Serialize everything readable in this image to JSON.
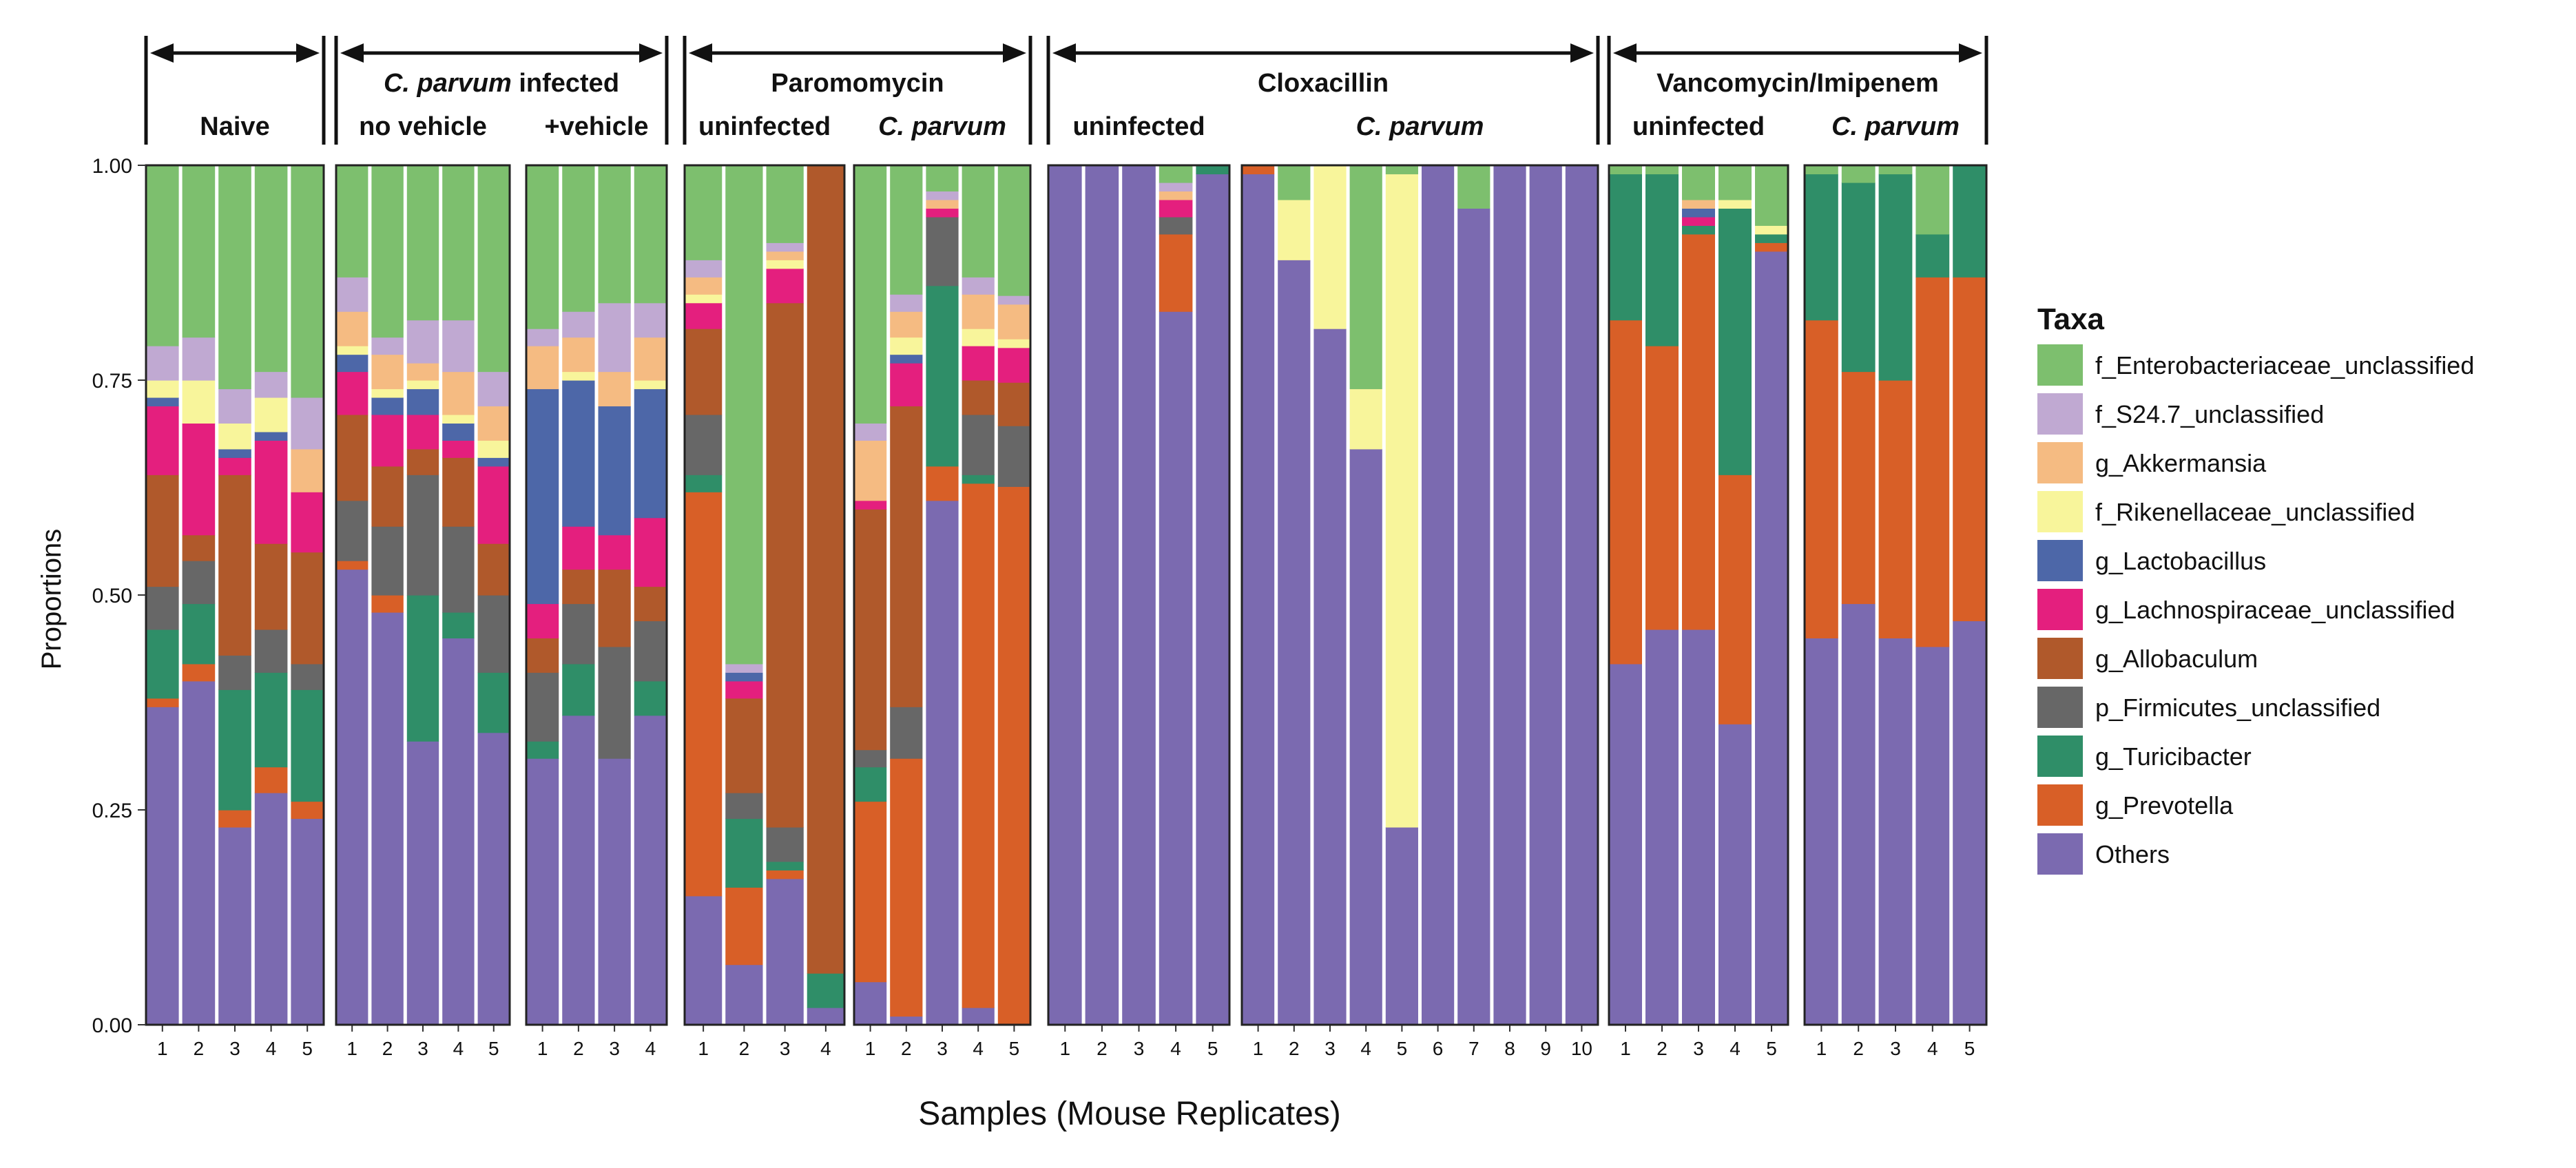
{
  "chart_data": {
    "type": "bar",
    "stacked": true,
    "ylabel": "Proportions",
    "xlabel": "Samples (Mouse Replicates)",
    "ylim": [
      0,
      1
    ],
    "yticks": [
      "0.00",
      "0.25",
      "0.50",
      "0.75",
      "1.00"
    ],
    "legend": {
      "title": "Taxa",
      "placement": "right",
      "entries": [
        {
          "name": "f_Enterobacteriaceae_unclassified",
          "color": "#7dbf6e"
        },
        {
          "name": "f_S24.7_unclassified",
          "color": "#c0a9d2"
        },
        {
          "name": "g_Akkermansia",
          "color": "#f5bb82"
        },
        {
          "name": "f_Rikenellaceae_unclassified",
          "color": "#f8f59b"
        },
        {
          "name": "g_Lactobacillus",
          "color": "#4d67a8"
        },
        {
          "name": "g_Lachnospiraceae_unclassified",
          "color": "#e41f7e"
        },
        {
          "name": "g_Allobaculum",
          "color": "#b0592b"
        },
        {
          "name": "p_Firmicutes_unclassified",
          "color": "#676767"
        },
        {
          "name": "g_Turicibacter",
          "color": "#2f8e68"
        },
        {
          "name": "g_Prevotella",
          "color": "#d85f27"
        },
        {
          "name": "Others",
          "color": "#7b6ab0"
        }
      ]
    },
    "group_headers": [
      {
        "title": "Naive",
        "title_italic": "",
        "panels": [
          0
        ]
      },
      {
        "title": " infected",
        "title_italic": "C. parvum",
        "panels": [
          1,
          2
        ]
      },
      {
        "title": "Paromomycin",
        "title_italic": "",
        "panels": [
          3,
          4
        ]
      },
      {
        "title": "Cloxacillin",
        "title_italic": "",
        "panels": [
          5,
          6
        ]
      },
      {
        "title": "Vancomycin/Imipenem",
        "title_italic": "",
        "panels": [
          7,
          8
        ]
      }
    ],
    "panels": [
      {
        "label": "",
        "italic": false,
        "samples": [
          [
            0.21,
            0.04,
            0,
            0.02,
            0.01,
            0.08,
            0.13,
            0.05,
            0.08,
            0.01,
            0.37
          ],
          [
            0.2,
            0.05,
            0,
            0.05,
            0,
            0.13,
            0.03,
            0.05,
            0.07,
            0.02,
            0.4
          ],
          [
            0.26,
            0.04,
            0,
            0.03,
            0.01,
            0.02,
            0.21,
            0.04,
            0.14,
            0.02,
            0.23
          ],
          [
            0.24,
            0.03,
            0,
            0.04,
            0.01,
            0.12,
            0.1,
            0.05,
            0.11,
            0.03,
            0.27
          ],
          [
            0.27,
            0.06,
            0.05,
            0,
            0,
            0.07,
            0.13,
            0.03,
            0.13,
            0.02,
            0.24
          ]
        ]
      },
      {
        "label": "no vehicle",
        "italic": false,
        "samples": [
          [
            0.13,
            0.04,
            0.04,
            0.01,
            0.02,
            0.05,
            0.1,
            0.07,
            0,
            0.01,
            0.53
          ],
          [
            0.2,
            0.02,
            0.04,
            0.01,
            0.02,
            0.06,
            0.07,
            0.08,
            0,
            0.02,
            0.48
          ],
          [
            0.18,
            0.05,
            0.02,
            0.01,
            0.03,
            0.04,
            0.03,
            0.14,
            0.17,
            0,
            0.33
          ],
          [
            0.18,
            0.06,
            0.05,
            0.01,
            0.02,
            0.02,
            0.08,
            0.1,
            0.03,
            0,
            0.45
          ],
          [
            0.24,
            0.04,
            0.04,
            0.02,
            0.01,
            0.09,
            0.06,
            0.09,
            0.07,
            0,
            0.34
          ]
        ]
      },
      {
        "label": "+vehicle",
        "italic": false,
        "samples": [
          [
            0.19,
            0.02,
            0.05,
            0,
            0.25,
            0.04,
            0.04,
            0.08,
            0.02,
            0,
            0.31
          ],
          [
            0.17,
            0.03,
            0.04,
            0.01,
            0.17,
            0.05,
            0.04,
            0.07,
            0.06,
            0,
            0.36
          ],
          [
            0.16,
            0.08,
            0.04,
            0,
            0.15,
            0.04,
            0.09,
            0.13,
            0,
            0,
            0.31
          ],
          [
            0.16,
            0.04,
            0.05,
            0.01,
            0.15,
            0.08,
            0.04,
            0.07,
            0.04,
            0,
            0.36
          ]
        ]
      },
      {
        "label": "uninfected",
        "italic": false,
        "samples": [
          [
            0.11,
            0.02,
            0.02,
            0.01,
            0,
            0.03,
            0.1,
            0.07,
            0.02,
            0.47,
            0.15
          ],
          [
            0.58,
            0.01,
            0,
            0,
            0.01,
            0.02,
            0.11,
            0.03,
            0.08,
            0.09,
            0.07
          ],
          [
            0.09,
            0.01,
            0.01,
            0.01,
            0,
            0.04,
            0.61,
            0.04,
            0.01,
            0.01,
            0.17
          ],
          [
            0,
            0,
            0,
            0,
            0,
            0,
            0.94,
            0,
            0.04,
            0,
            0.02
          ]
        ]
      },
      {
        "label": "C. parvum",
        "italic": true,
        "samples": [
          [
            0.3,
            0.02,
            0.07,
            0,
            0,
            0.01,
            0.28,
            0.02,
            0.04,
            0.21,
            0.05
          ],
          [
            0.15,
            0.02,
            0.03,
            0.02,
            0.01,
            0.05,
            0.35,
            0.06,
            0,
            0.3,
            0.01
          ],
          [
            0.03,
            0.01,
            0.01,
            0,
            0,
            0.01,
            0,
            0.08,
            0.21,
            0.04,
            0.61
          ],
          [
            0.13,
            0.02,
            0.04,
            0.02,
            0,
            0.04,
            0.04,
            0.07,
            0.01,
            0.61,
            0.02
          ],
          [
            0.15,
            0.01,
            0.04,
            0.01,
            0,
            0.04,
            0.05,
            0.07,
            0,
            0.62,
            0
          ]
        ]
      },
      {
        "label": "uninfected",
        "italic": false,
        "samples": [
          [
            0,
            0,
            0,
            0,
            0,
            0,
            0,
            0,
            0,
            0,
            1
          ],
          [
            0,
            0,
            0,
            0,
            0,
            0,
            0,
            0,
            0,
            0,
            1
          ],
          [
            0,
            0,
            0,
            0,
            0,
            0,
            0,
            0,
            0,
            0,
            1
          ],
          [
            0.02,
            0.01,
            0.01,
            0,
            0,
            0.02,
            0,
            0.02,
            0,
            0.09,
            0.83
          ],
          [
            0,
            0,
            0,
            0,
            0,
            0,
            0,
            0,
            0.01,
            0,
            0.99
          ]
        ]
      },
      {
        "label": "C. parvum",
        "italic": true,
        "samples": [
          [
            0,
            0,
            0,
            0,
            0,
            0,
            0,
            0,
            0,
            0.01,
            0.99
          ],
          [
            0.04,
            0,
            0,
            0.07,
            0,
            0,
            0,
            0,
            0,
            0,
            0.89
          ],
          [
            0,
            0,
            0,
            0.19,
            0,
            0,
            0,
            0,
            0,
            0,
            0.81
          ],
          [
            0.26,
            0,
            0,
            0.07,
            0,
            0,
            0,
            0,
            0,
            0,
            0.67
          ],
          [
            0.01,
            0,
            0,
            0.76,
            0,
            0,
            0,
            0,
            0,
            0,
            0.23
          ],
          [
            0,
            0,
            0,
            0,
            0,
            0,
            0,
            0,
            0,
            0,
            1
          ],
          [
            0.05,
            0,
            0,
            0,
            0,
            0,
            0,
            0,
            0,
            0,
            0.95
          ],
          [
            0,
            0,
            0,
            0,
            0,
            0,
            0,
            0,
            0,
            0,
            1
          ],
          [
            0,
            0,
            0,
            0,
            0,
            0,
            0,
            0,
            0,
            0,
            1
          ],
          [
            0,
            0,
            0,
            0,
            0,
            0,
            0,
            0,
            0,
            0,
            1
          ]
        ]
      },
      {
        "label": "uninfected",
        "italic": false,
        "samples": [
          [
            0.01,
            0,
            0,
            0,
            0,
            0,
            0,
            0,
            0.17,
            0.4,
            0.42
          ],
          [
            0.01,
            0,
            0,
            0,
            0,
            0,
            0,
            0,
            0.2,
            0.33,
            0.46
          ],
          [
            0.04,
            0,
            0.01,
            0,
            0.01,
            0.01,
            0,
            0,
            0.01,
            0.46,
            0.46
          ],
          [
            0.04,
            0,
            0,
            0.01,
            0,
            0,
            0,
            0,
            0.31,
            0.29,
            0.35
          ],
          [
            0.07,
            0,
            0,
            0.01,
            0,
            0,
            0,
            0,
            0.01,
            0.01,
            0.9
          ]
        ]
      },
      {
        "label": "C. parvum",
        "italic": true,
        "samples": [
          [
            0.01,
            0,
            0,
            0,
            0,
            0,
            0,
            0,
            0.17,
            0.37,
            0.45
          ],
          [
            0.02,
            0,
            0,
            0,
            0,
            0,
            0,
            0,
            0.22,
            0.27,
            0.49
          ],
          [
            0.01,
            0,
            0,
            0,
            0,
            0,
            0,
            0,
            0.24,
            0.3,
            0.45
          ],
          [
            0.08,
            0,
            0,
            0,
            0,
            0,
            0,
            0,
            0.05,
            0.43,
            0.44
          ],
          [
            0,
            0,
            0,
            0,
            0,
            0,
            0,
            0,
            0.13,
            0.4,
            0.47
          ]
        ]
      }
    ]
  }
}
